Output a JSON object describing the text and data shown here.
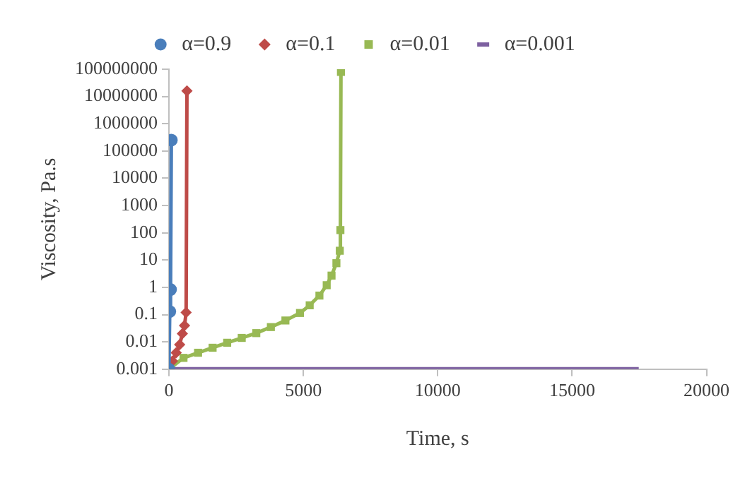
{
  "chart_data": {
    "type": "line",
    "xlabel": "Time, s",
    "ylabel": "Viscosity, Pa.s",
    "log": "y",
    "grid": false,
    "legend": "top",
    "xlim": [
      0,
      20000
    ],
    "xticks": [
      0,
      5000,
      10000,
      15000,
      20000
    ],
    "ylim": [
      0.001,
      100000000
    ],
    "yticks": [
      0.001,
      0.01,
      0.1,
      1,
      10,
      100,
      1000,
      10000,
      100000,
      1000000,
      10000000,
      100000000
    ],
    "series": [
      {
        "name": "α=0.9",
        "color": "#4a7ebb",
        "marker": "circle",
        "x": [
          0,
          30,
          60,
          90
        ],
        "values": [
          0.001,
          0.13,
          0.83,
          250000
        ]
      },
      {
        "name": "α=0.1",
        "color": "#be4b48",
        "marker": "diamond",
        "x": [
          0,
          130,
          270,
          400,
          500,
          580,
          640,
          670
        ],
        "values": [
          0.001,
          0.002,
          0.004,
          0.008,
          0.02,
          0.04,
          0.12,
          16000000
        ]
      },
      {
        "name": "α=0.01",
        "color": "#98b954",
        "marker": "square",
        "x": [
          0,
          542,
          1084,
          1625,
          2167,
          2709,
          3251,
          3793,
          4334,
          4876,
          5237,
          5599,
          5870,
          6050,
          6231,
          6357,
          6380,
          6400
        ],
        "values": [
          0.001,
          0.0026,
          0.004,
          0.0061,
          0.0093,
          0.014,
          0.021,
          0.035,
          0.061,
          0.115,
          0.22,
          0.5,
          1.2,
          2.7,
          7.7,
          22,
          126,
          80000000
        ]
      },
      {
        "name": "α=0.001",
        "color": "#7d60a0",
        "marker": "none",
        "x": [
          0,
          2500,
          5000,
          7500,
          10000,
          12500,
          15000,
          17480
        ],
        "values": [
          0.001,
          0.001,
          0.001,
          0.001,
          0.001,
          0.001,
          0.001,
          0.001
        ]
      }
    ]
  }
}
